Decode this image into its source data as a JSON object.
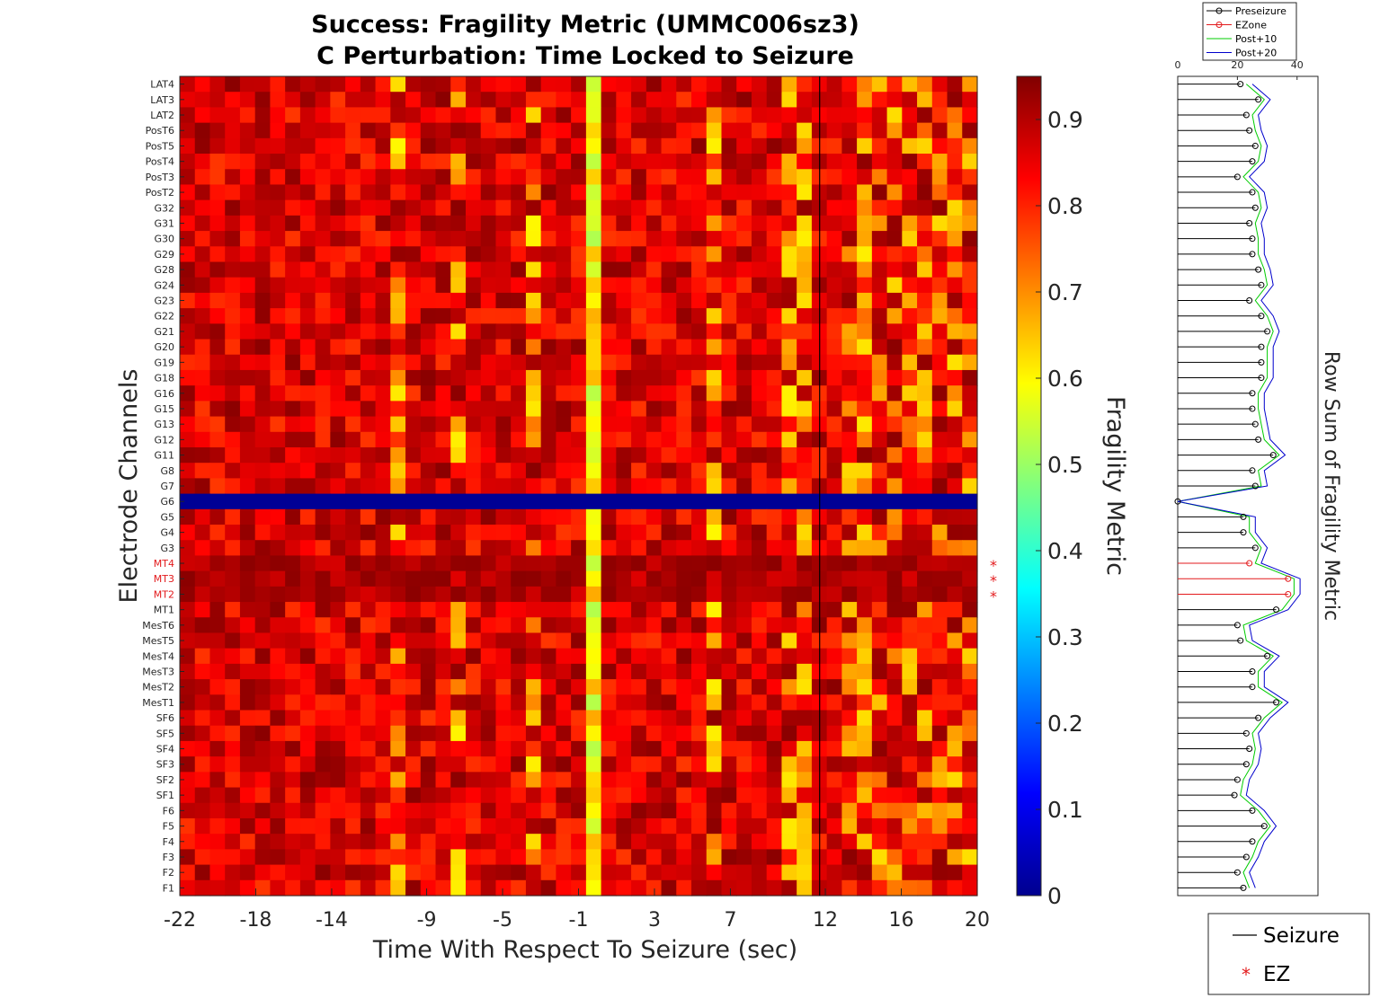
{
  "chart_data": {
    "type": "heatmap",
    "title": [
      "Success: Fragility Metric (UMMC006sz3)",
      "C Perturbation:  Time Locked to Seizure"
    ],
    "xlabel": "Time With Respect To Seizure (sec)",
    "ylabel": "Electrode Channels",
    "xticks": [
      "-22",
      "-18",
      "-14",
      "-9",
      "-5",
      "-1",
      "3",
      "7",
      "12",
      "16",
      "20"
    ],
    "seizure_time": 11.7,
    "channels": [
      "LAT4",
      "LAT3",
      "LAT2",
      "PosT6",
      "PosT5",
      "PosT4",
      "PosT3",
      "PosT2",
      "G32",
      "G31",
      "G30",
      "G29",
      "G28",
      "G24",
      "G23",
      "G22",
      "G21",
      "G20",
      "G19",
      "G18",
      "G16",
      "G15",
      "G13",
      "G12",
      "G11",
      "G8",
      "G7",
      "G6",
      "G5",
      "G4",
      "G3",
      "MT4",
      "MT3",
      "MT2",
      "MT1",
      "MesT6",
      "MesT5",
      "MesT4",
      "MesT3",
      "MesT2",
      "MesT1",
      "SF6",
      "SF5",
      "SF4",
      "SF3",
      "SF2",
      "SF1",
      "F6",
      "F5",
      "F4",
      "F3",
      "F2",
      "F1"
    ],
    "ez_channels": [
      "MT4",
      "MT3",
      "MT2"
    ],
    "zero_channels": [
      "G6"
    ],
    "n_time_bins": 53,
    "x_range": [
      -22,
      20
    ],
    "colorbar": {
      "label": "Fragility Metric",
      "range": [
        0,
        0.95
      ],
      "ticks": [
        "0",
        "0.1",
        "0.2",
        "0.3",
        "0.4",
        "0.5",
        "0.6",
        "0.7",
        "0.8",
        "0.9"
      ],
      "colormap": "jet"
    }
  },
  "rowsum": {
    "ylabel": "Row Sum of Fragility Metric",
    "xticks": [
      "0",
      "20",
      "40"
    ],
    "xlim": [
      0,
      47
    ],
    "legend": [
      "Preseizure",
      "EZone",
      "Post+10",
      "Post+20"
    ],
    "legend_colors": [
      "#000000",
      "#e31a1c",
      "#00cc00",
      "#0000cc"
    ],
    "preseizure": [
      21,
      27,
      23,
      24,
      26,
      25,
      20,
      25,
      26,
      24,
      25,
      25,
      27,
      28,
      24,
      28,
      30,
      28,
      28,
      28,
      25,
      25,
      26,
      27,
      32,
      25,
      26,
      0,
      22,
      22,
      26,
      24,
      37,
      37,
      33,
      20,
      21,
      30,
      25,
      25,
      33,
      27,
      23,
      24,
      23,
      20,
      19,
      25,
      29,
      25,
      23,
      20,
      22
    ]
  },
  "legend2": {
    "items": [
      "Seizure",
      "EZ"
    ]
  },
  "colors": {
    "ez_label": "#e31a1c",
    "seizure_line": "#000000"
  }
}
